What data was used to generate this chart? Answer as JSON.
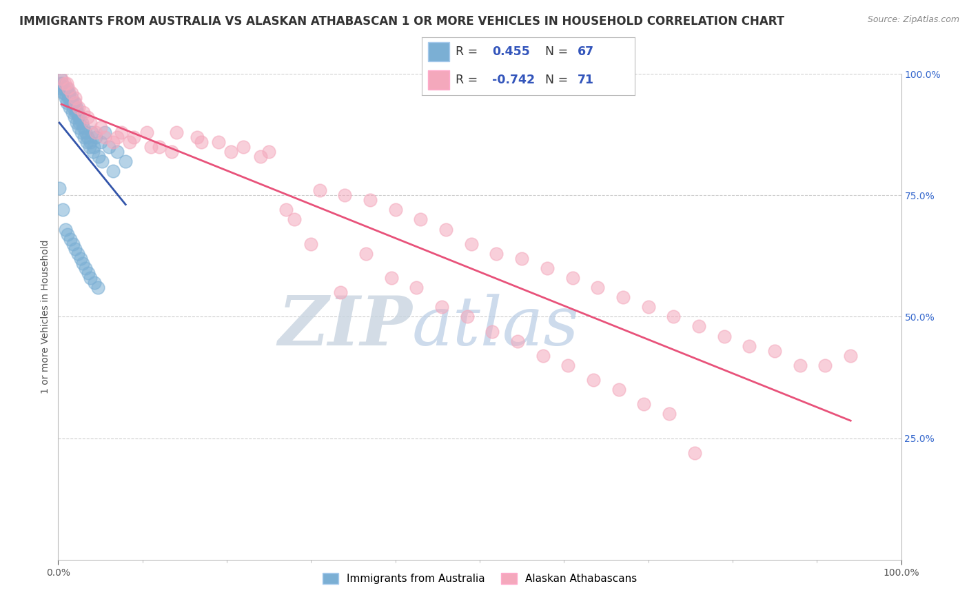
{
  "title": "IMMIGRANTS FROM AUSTRALIA VS ALASKAN ATHABASCAN 1 OR MORE VEHICLES IN HOUSEHOLD CORRELATION CHART",
  "source": "Source: ZipAtlas.com",
  "ylabel": "1 or more Vehicles in Household",
  "blue_label": "Immigrants from Australia",
  "pink_label": "Alaskan Athabascans",
  "blue_R": 0.455,
  "blue_N": 67,
  "pink_R": -0.742,
  "pink_N": 71,
  "blue_color": "#7BAFD4",
  "pink_color": "#F4A8BC",
  "blue_line_color": "#3355AA",
  "pink_line_color": "#E8527A",
  "background_color": "#FFFFFF",
  "watermark_ZIP": "ZIP",
  "watermark_atlas": "atlas",
  "watermark_ZIP_color": "#C8D4E0",
  "watermark_atlas_color": "#B8CCE4",
  "right_yticks": [
    0.25,
    0.5,
    0.75,
    1.0
  ],
  "right_yticklabels": [
    "25.0%",
    "50.0%",
    "75.0%",
    "100.0%"
  ],
  "grid_color": "#CCCCCC",
  "title_fontsize": 12,
  "axis_label_fontsize": 10,
  "tick_fontsize": 10,
  "blue_x": [
    0.3,
    0.5,
    0.7,
    0.8,
    1.0,
    1.1,
    1.2,
    1.3,
    1.4,
    1.5,
    1.6,
    1.7,
    1.8,
    1.9,
    2.0,
    2.1,
    2.2,
    2.3,
    2.4,
    2.5,
    2.6,
    2.8,
    3.0,
    3.2,
    3.5,
    3.8,
    4.0,
    4.2,
    4.5,
    5.0,
    5.5,
    6.0,
    7.0,
    8.0,
    0.2,
    0.4,
    0.6,
    0.9,
    1.05,
    1.35,
    1.65,
    1.95,
    2.15,
    2.45,
    2.75,
    3.1,
    3.4,
    3.7,
    4.1,
    4.8,
    5.2,
    6.5,
    0.15,
    0.55,
    0.85,
    1.15,
    1.45,
    1.75,
    2.05,
    2.35,
    2.65,
    2.95,
    3.25,
    3.55,
    3.85,
    4.3,
    4.7
  ],
  "blue_y": [
    0.99,
    0.98,
    0.97,
    0.96,
    0.97,
    0.96,
    0.95,
    0.96,
    0.95,
    0.94,
    0.95,
    0.94,
    0.93,
    0.94,
    0.93,
    0.92,
    0.93,
    0.92,
    0.91,
    0.9,
    0.91,
    0.9,
    0.89,
    0.88,
    0.87,
    0.86,
    0.88,
    0.85,
    0.87,
    0.86,
    0.88,
    0.85,
    0.84,
    0.82,
    0.98,
    0.97,
    0.96,
    0.95,
    0.94,
    0.93,
    0.92,
    0.91,
    0.9,
    0.89,
    0.88,
    0.87,
    0.86,
    0.85,
    0.84,
    0.83,
    0.82,
    0.8,
    0.765,
    0.72,
    0.68,
    0.67,
    0.66,
    0.65,
    0.64,
    0.63,
    0.62,
    0.61,
    0.6,
    0.59,
    0.58,
    0.57,
    0.56
  ],
  "pink_x": [
    0.4,
    0.8,
    1.2,
    1.6,
    2.0,
    2.4,
    3.0,
    3.8,
    4.5,
    5.5,
    6.5,
    7.5,
    9.0,
    10.5,
    12.0,
    14.0,
    16.5,
    19.0,
    22.0,
    25.0,
    28.0,
    31.0,
    34.0,
    37.0,
    40.0,
    43.0,
    46.0,
    49.0,
    52.0,
    55.0,
    58.0,
    61.0,
    64.0,
    67.0,
    70.0,
    73.0,
    76.0,
    79.0,
    82.0,
    85.0,
    88.0,
    91.0,
    94.0,
    1.0,
    2.0,
    3.5,
    5.0,
    7.0,
    8.5,
    11.0,
    13.5,
    17.0,
    20.5,
    24.0,
    27.0,
    30.0,
    33.5,
    36.5,
    39.5,
    42.5,
    45.5,
    48.5,
    51.5,
    54.5,
    57.5,
    60.5,
    63.5,
    66.5,
    69.5,
    72.5,
    75.5
  ],
  "pink_y": [
    0.99,
    0.98,
    0.97,
    0.96,
    0.95,
    0.93,
    0.92,
    0.9,
    0.88,
    0.87,
    0.86,
    0.88,
    0.87,
    0.88,
    0.85,
    0.88,
    0.87,
    0.86,
    0.85,
    0.84,
    0.7,
    0.76,
    0.75,
    0.74,
    0.72,
    0.7,
    0.68,
    0.65,
    0.63,
    0.62,
    0.6,
    0.58,
    0.56,
    0.54,
    0.52,
    0.5,
    0.48,
    0.46,
    0.44,
    0.43,
    0.4,
    0.4,
    0.42,
    0.98,
    0.94,
    0.91,
    0.89,
    0.87,
    0.86,
    0.85,
    0.84,
    0.86,
    0.84,
    0.83,
    0.72,
    0.65,
    0.55,
    0.63,
    0.58,
    0.56,
    0.52,
    0.5,
    0.47,
    0.45,
    0.42,
    0.4,
    0.37,
    0.35,
    0.32,
    0.3,
    0.22
  ]
}
